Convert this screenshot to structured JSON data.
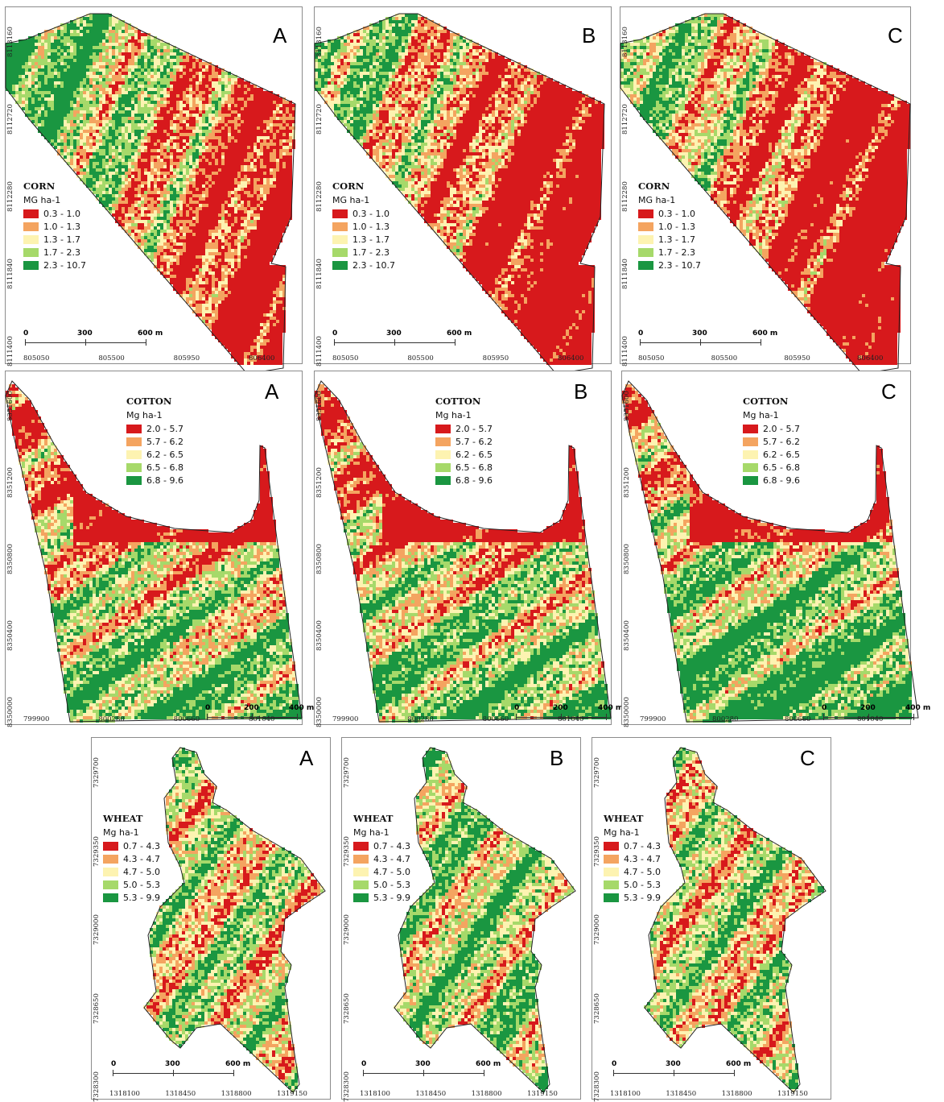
{
  "rows": [
    {
      "crop": "CORN",
      "unit": "MG ha-1",
      "classes": [
        {
          "range": "0.3 - 1.0",
          "color": "#d7191c"
        },
        {
          "range": "1.0 - 1.3",
          "color": "#f4a460"
        },
        {
          "range": "1.3 - 1.7",
          "color": "#fdf3b1"
        },
        {
          "range": "1.7 - 2.3",
          "color": "#a6d96a"
        },
        {
          "range": "2.3 - 10.7",
          "color": "#1a9641"
        }
      ],
      "scale": [
        "0",
        "300",
        "600 m"
      ],
      "yticks": [
        "8113160",
        "8112720",
        "8112280",
        "8111840",
        "8111400"
      ],
      "xticks": [
        "805050",
        "805500",
        "805950",
        "806400"
      ],
      "panels": [
        "A",
        "B",
        "C"
      ]
    },
    {
      "crop": "COTTON",
      "unit": "Mg ha-1",
      "classes": [
        {
          "range": "2.0 - 5.7",
          "color": "#d7191c"
        },
        {
          "range": "5.7 - 6.2",
          "color": "#f4a460"
        },
        {
          "range": "6.2 - 6.5",
          "color": "#fdf3b1"
        },
        {
          "range": "6.5 - 6.8",
          "color": "#a6d96a"
        },
        {
          "range": "6.8 - 9.6",
          "color": "#1a9641"
        }
      ],
      "scale": [
        "0",
        "200",
        "400 m"
      ],
      "yticks": [
        "8351600",
        "8351200",
        "8350800",
        "8350400",
        "8350000"
      ],
      "xticks": [
        "799900",
        "800280",
        "800660",
        "801040"
      ],
      "panels": [
        "A",
        "B",
        "C"
      ]
    },
    {
      "crop": "WHEAT",
      "unit": "Mg ha-1",
      "classes": [
        {
          "range": "0.7 - 4.3",
          "color": "#d7191c"
        },
        {
          "range": "4.3 - 4.7",
          "color": "#f4a460"
        },
        {
          "range": "4.7 - 5.0",
          "color": "#fdf3b1"
        },
        {
          "range": "5.0 - 5.3",
          "color": "#a6d96a"
        },
        {
          "range": "5.3 - 9.9",
          "color": "#1a9641"
        }
      ],
      "scale": [
        "0",
        "300",
        "600 m"
      ],
      "yticks": [
        "7329700",
        "7329350",
        "7329000",
        "7328650",
        "7328300"
      ],
      "xticks": [
        "1318100",
        "1318450",
        "1318800",
        "1319150"
      ],
      "panels": [
        "A",
        "B",
        "C"
      ]
    }
  ]
}
